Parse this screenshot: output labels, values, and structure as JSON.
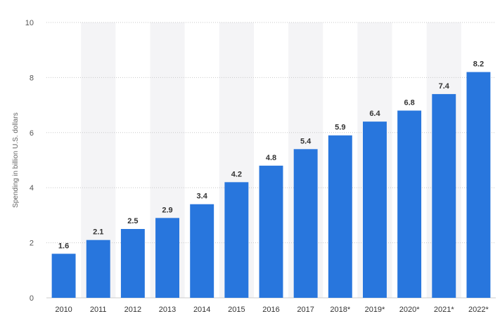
{
  "chart_data": {
    "type": "bar",
    "categories": [
      "2010",
      "2011",
      "2012",
      "2013",
      "2014",
      "2015",
      "2016",
      "2017",
      "2018*",
      "2019*",
      "2020*",
      "2021*",
      "2022*"
    ],
    "values": [
      1.6,
      2.1,
      2.5,
      2.9,
      3.4,
      4.2,
      4.8,
      5.4,
      5.9,
      6.4,
      6.8,
      7.4,
      8.2
    ],
    "title": "",
    "xlabel": "",
    "ylabel": "Spending in billion U.S. dollars",
    "ylim": [
      0,
      10
    ],
    "yticks": [
      0,
      2,
      4,
      6,
      8,
      10
    ],
    "grid": true,
    "legend": "none",
    "bar_color": "#2876dd",
    "band_color": "#f4f4f6"
  }
}
